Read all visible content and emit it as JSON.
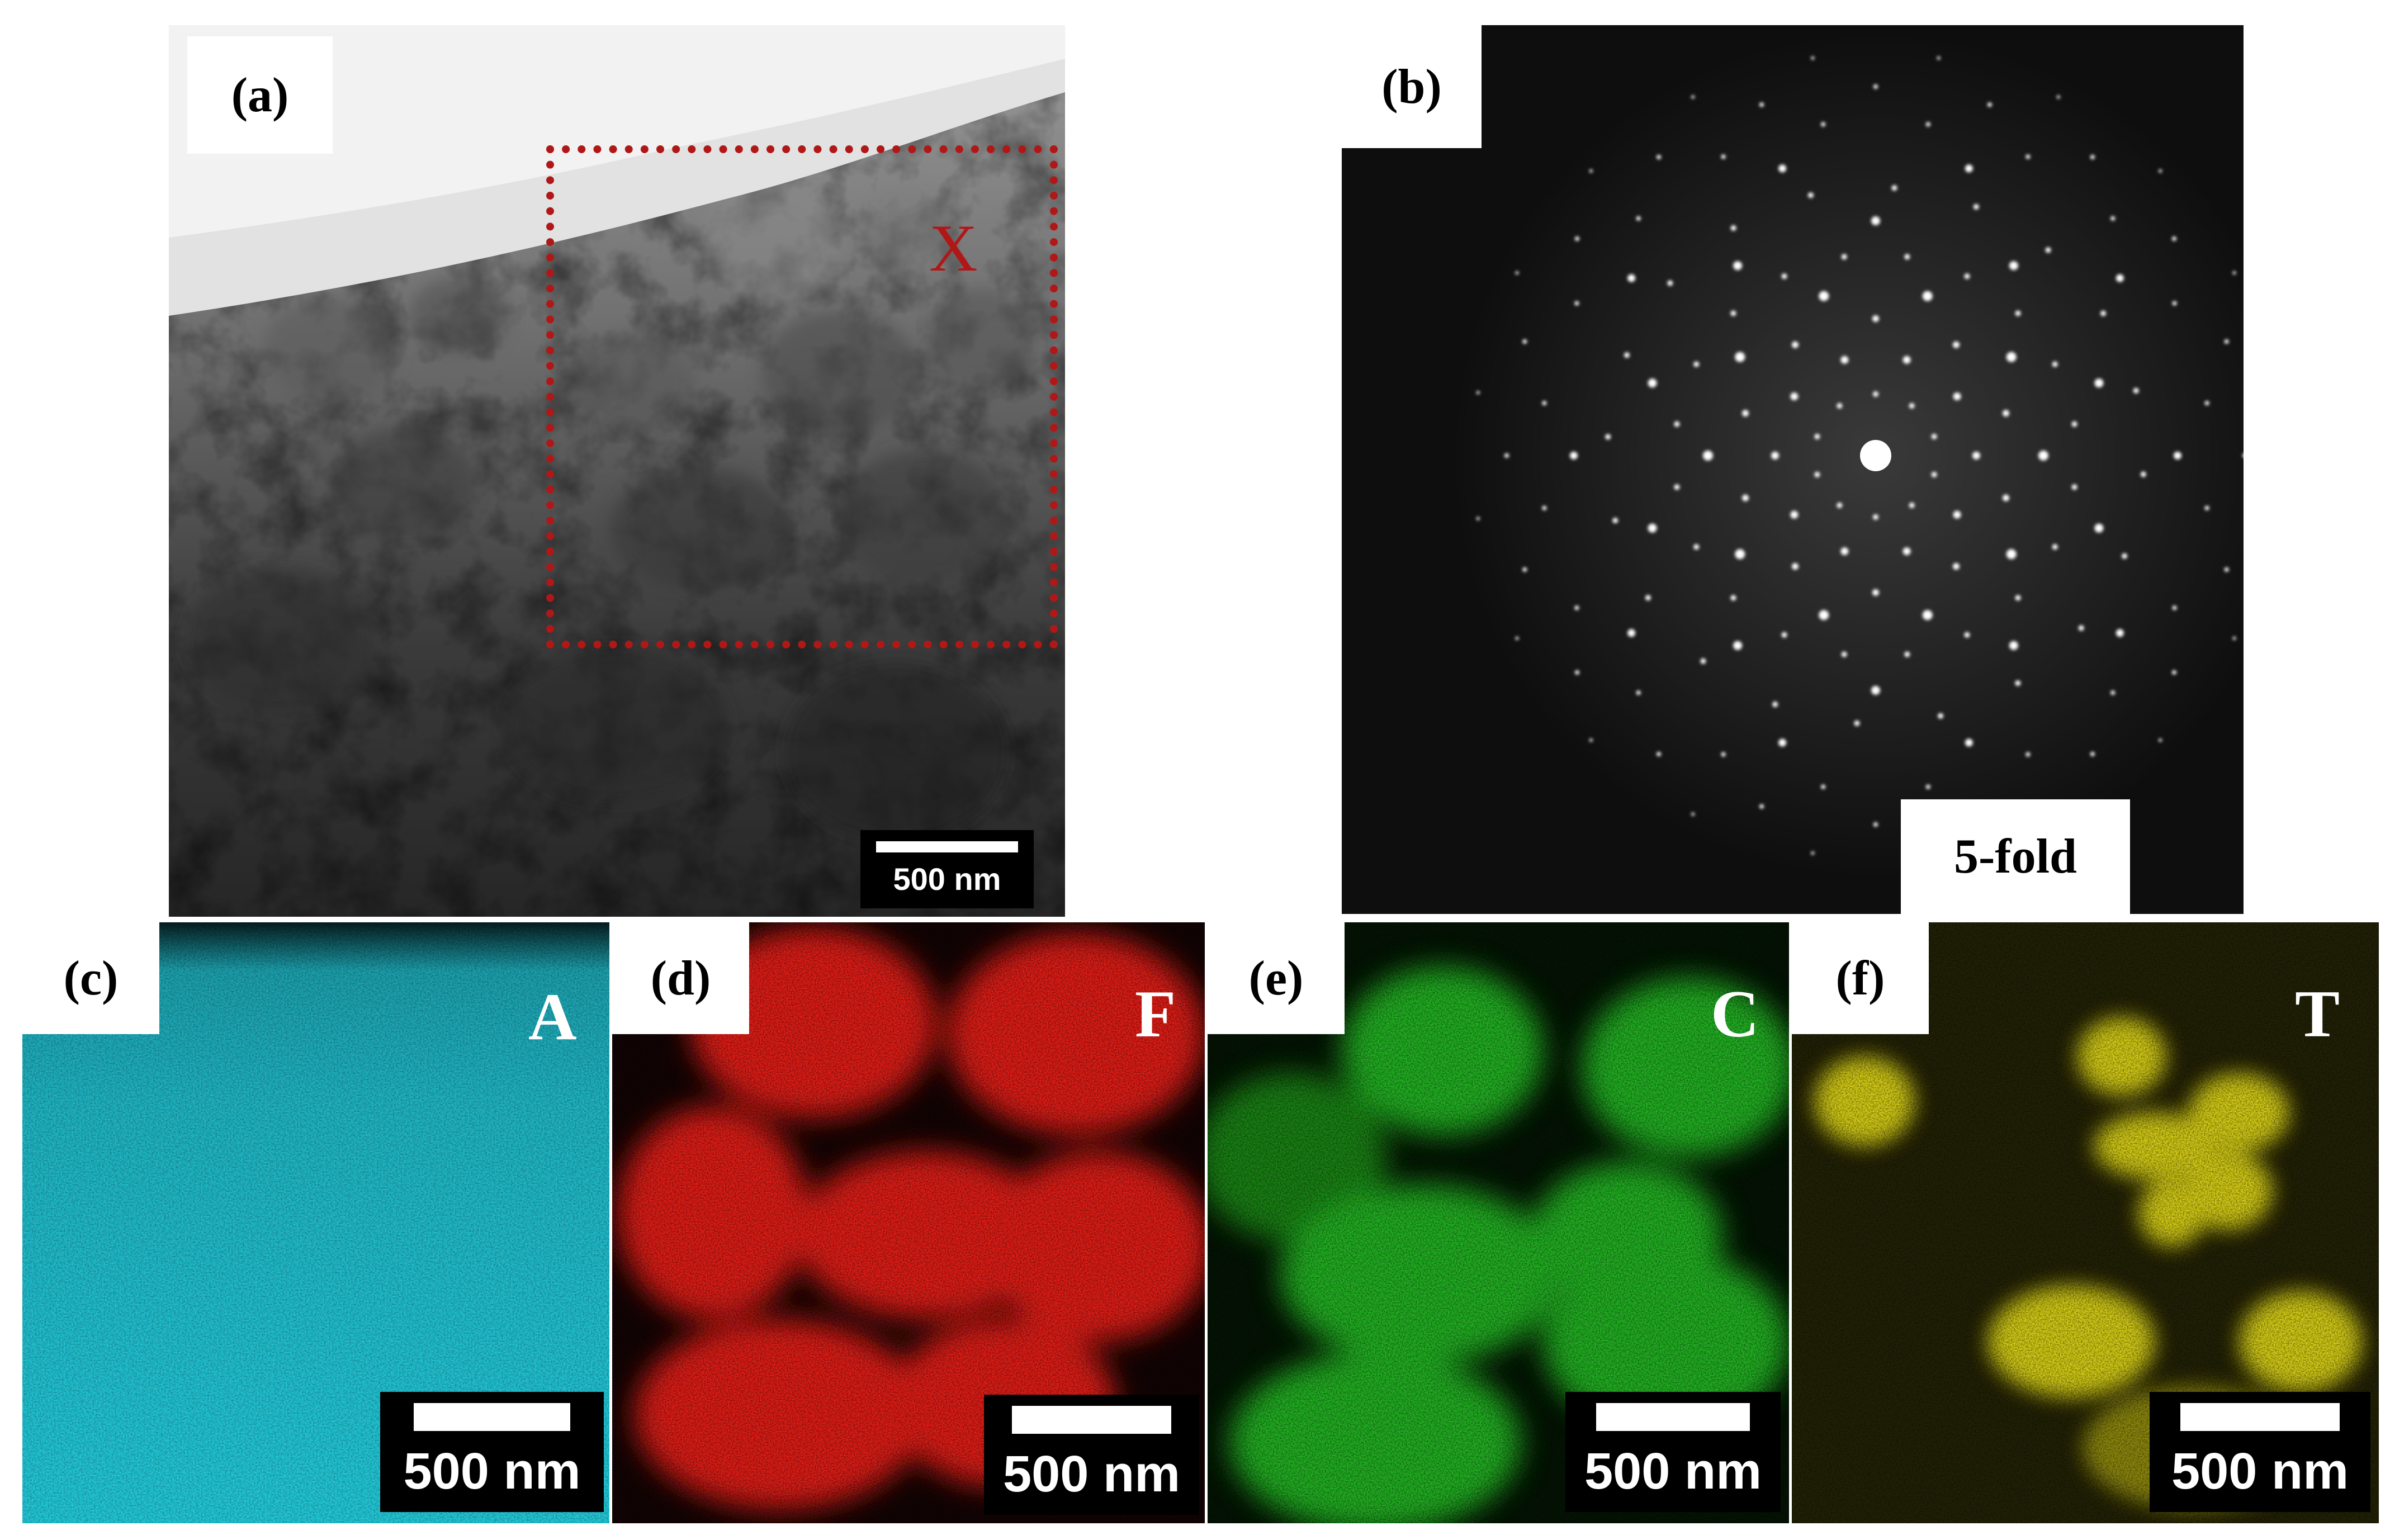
{
  "panels": {
    "a": {
      "label": "(a)",
      "region_label": "X",
      "scale_bar": "500 nm"
    },
    "b": {
      "label": "(b)",
      "symmetry": "5-fold"
    },
    "c": {
      "label": "(c)",
      "element": "A",
      "scale_bar": "500 nm"
    },
    "d": {
      "label": "(d)",
      "element": "F",
      "scale_bar": "500 nm"
    },
    "e": {
      "label": "(e)",
      "element": "C",
      "scale_bar": "500 nm"
    },
    "f": {
      "label": "(f)",
      "element": "T",
      "scale_bar": "500 nm"
    }
  },
  "colors": {
    "region_box": "#b01818",
    "map_c": "#22c8d8",
    "map_d": "#e01a14",
    "map_e": "#24b020",
    "map_f": "#c8c010"
  }
}
